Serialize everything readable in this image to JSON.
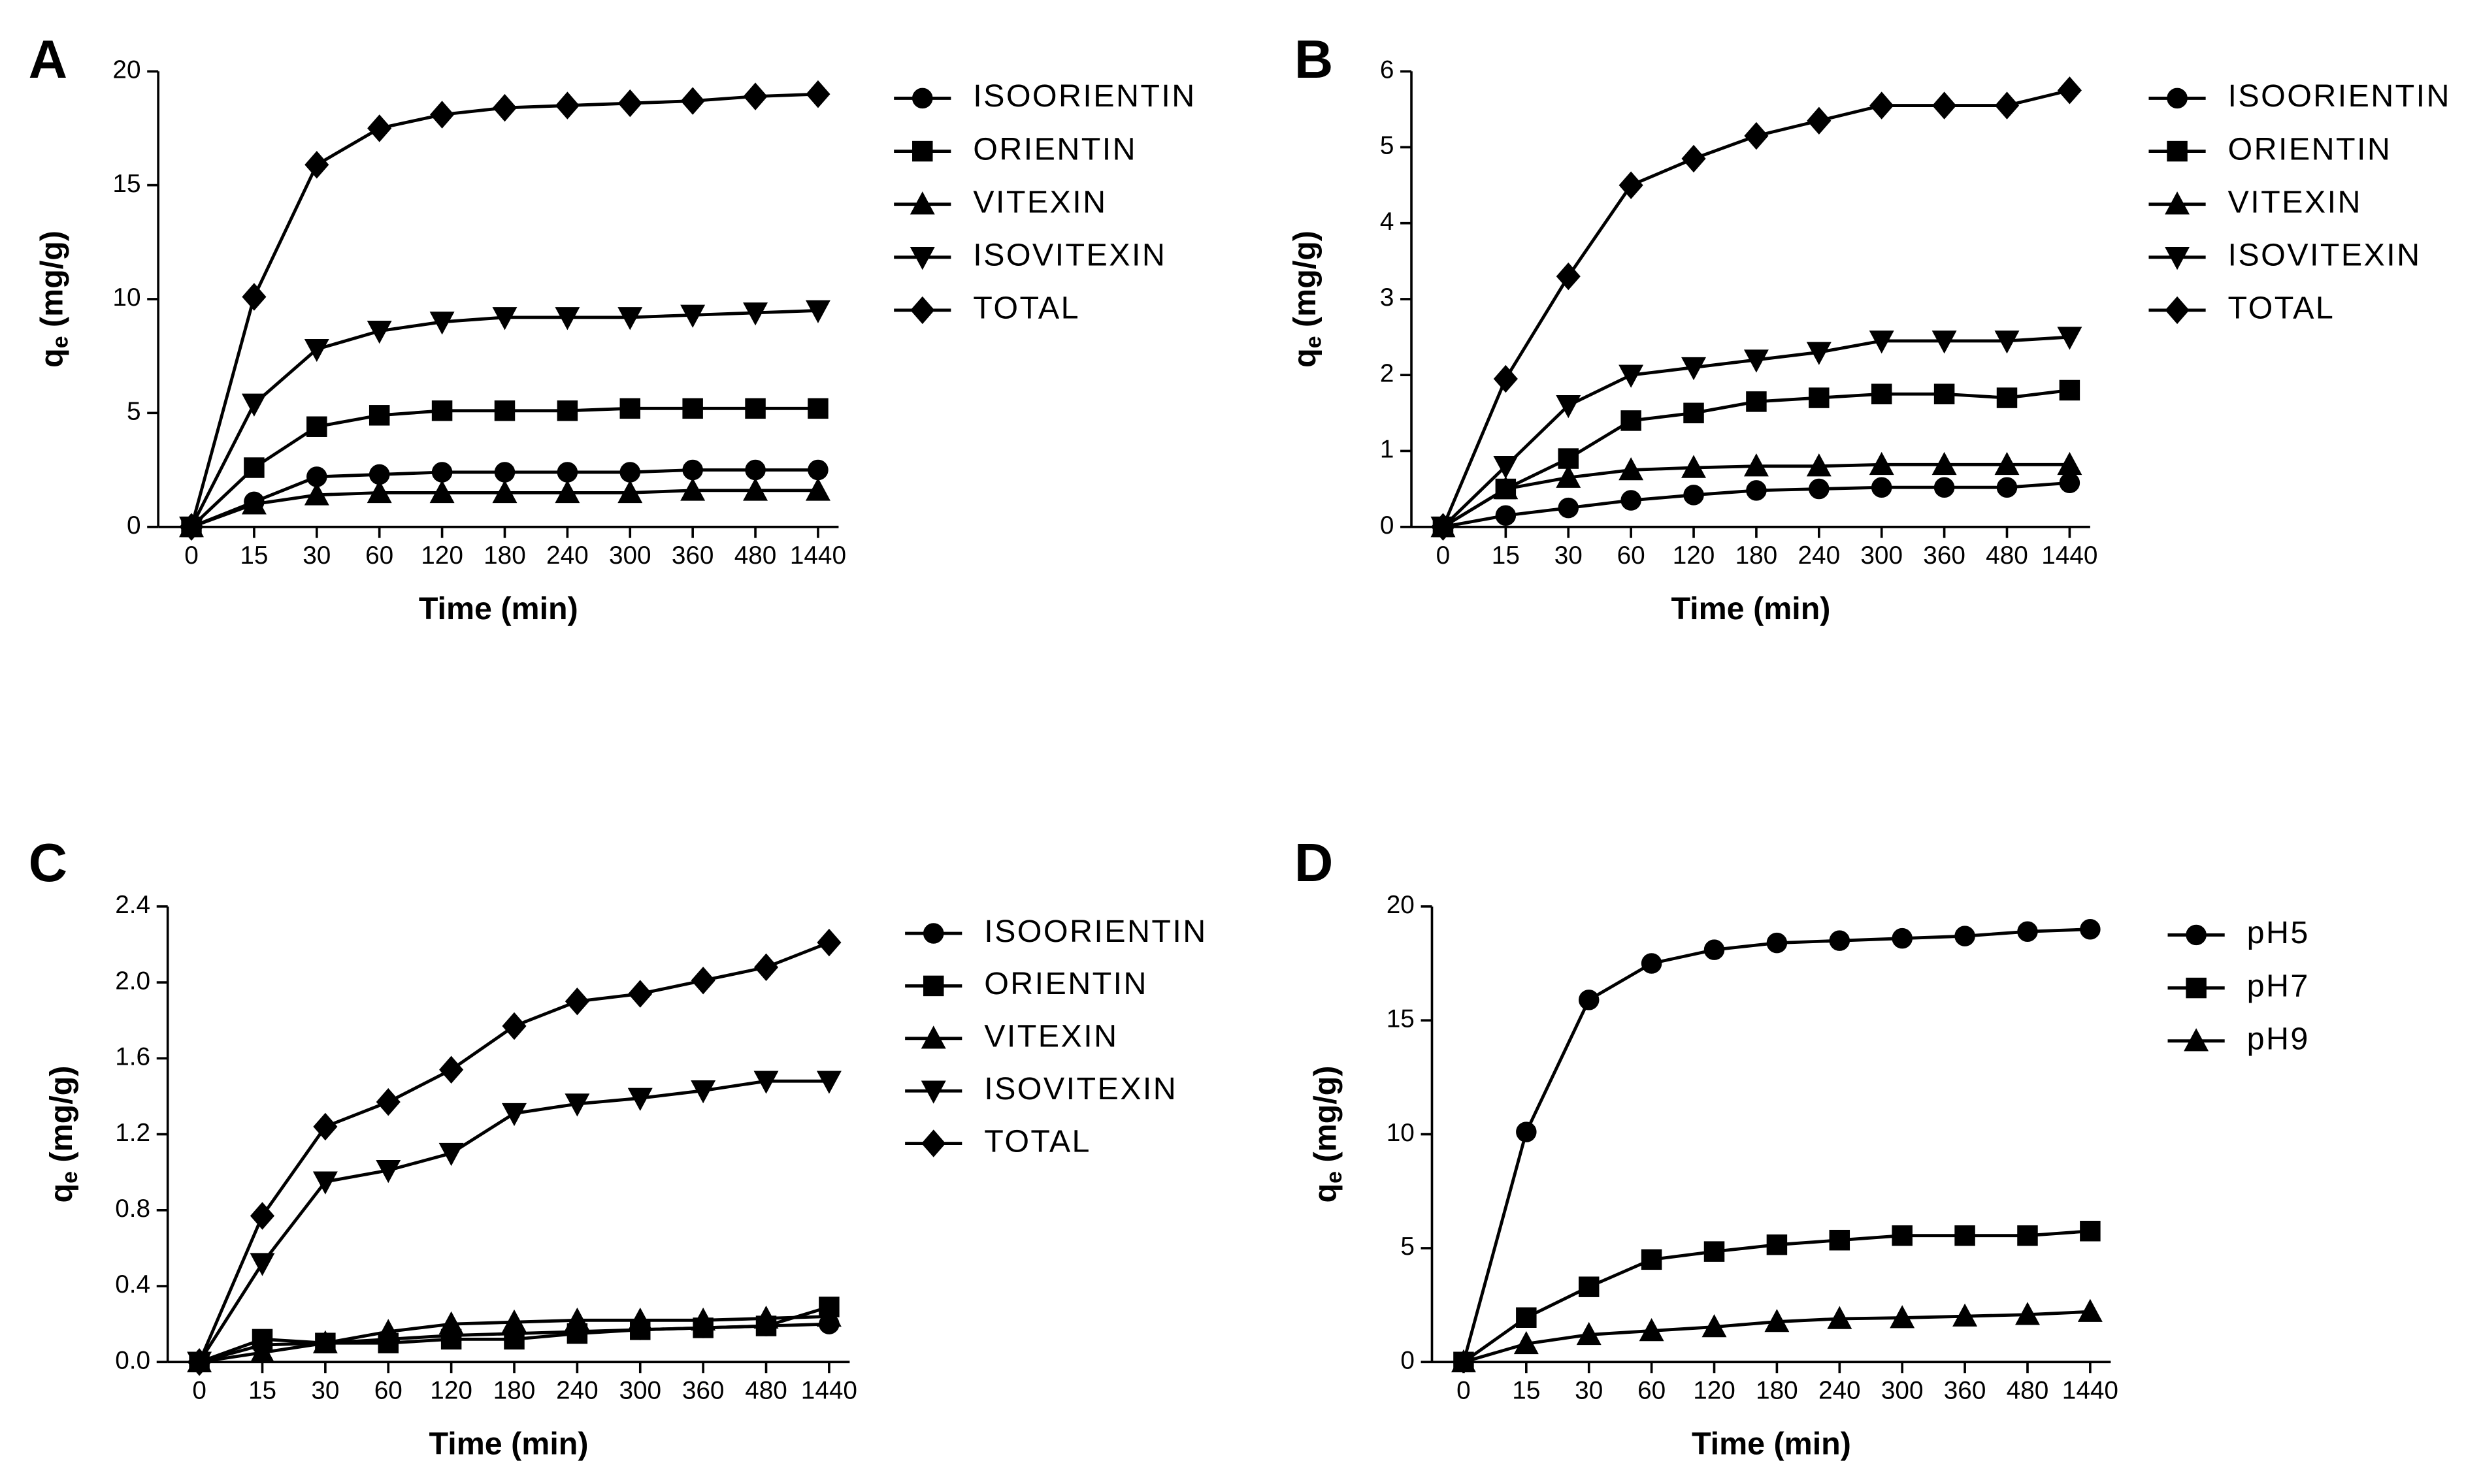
{
  "chart_data": [
    {
      "type": "line",
      "panel_label": "A",
      "x_label": "Time (min)",
      "y_label": {
        "main": "q",
        "sub": "e",
        "rest": " (mg/g)"
      },
      "categories": [
        "0",
        "15",
        "30",
        "60",
        "120",
        "180",
        "240",
        "300",
        "360",
        "480",
        "1440"
      ],
      "ylim": [
        0,
        20
      ],
      "yticks": [
        0,
        5,
        10,
        15,
        20
      ],
      "series": [
        {
          "name": "ISOORIENTIN",
          "color": "#000000",
          "marker": "circle",
          "values": [
            0,
            1.1,
            2.2,
            2.3,
            2.4,
            2.4,
            2.4,
            2.4,
            2.5,
            2.5,
            2.5
          ]
        },
        {
          "name": "ORIENTIN",
          "color": "#000000",
          "marker": "square",
          "values": [
            0,
            2.6,
            4.4,
            4.9,
            5.1,
            5.1,
            5.1,
            5.2,
            5.2,
            5.2,
            5.2
          ]
        },
        {
          "name": "VITEXIN",
          "color": "#000000",
          "marker": "triangle",
          "values": [
            0,
            1.0,
            1.4,
            1.5,
            1.5,
            1.5,
            1.5,
            1.5,
            1.6,
            1.6,
            1.6
          ]
        },
        {
          "name": "ISOVITEXIN",
          "color": "#000000",
          "marker": "triangle-down",
          "values": [
            0,
            5.4,
            7.8,
            8.6,
            9.0,
            9.2,
            9.2,
            9.2,
            9.3,
            9.4,
            9.5
          ]
        },
        {
          "name": "TOTAL",
          "color": "#000000",
          "marker": "diamond",
          "values": [
            0,
            10.1,
            15.9,
            17.5,
            18.1,
            18.4,
            18.5,
            18.6,
            18.7,
            18.9,
            19.0
          ]
        }
      ]
    },
    {
      "type": "line",
      "panel_label": "B",
      "x_label": "Time (min)",
      "y_label": {
        "main": "q",
        "sub": "e",
        "rest": " (mg/g)"
      },
      "categories": [
        "0",
        "15",
        "30",
        "60",
        "120",
        "180",
        "240",
        "300",
        "360",
        "480",
        "1440"
      ],
      "ylim": [
        0,
        6
      ],
      "yticks": [
        0,
        1,
        2,
        3,
        4,
        5,
        6
      ],
      "series": [
        {
          "name": "ISOORIENTIN",
          "color": "#000000",
          "marker": "circle",
          "values": [
            0,
            0.15,
            0.25,
            0.35,
            0.42,
            0.48,
            0.5,
            0.52,
            0.52,
            0.52,
            0.58
          ]
        },
        {
          "name": "ORIENTIN",
          "color": "#000000",
          "marker": "square",
          "values": [
            0,
            0.5,
            0.9,
            1.4,
            1.5,
            1.65,
            1.7,
            1.75,
            1.75,
            1.7,
            1.8
          ]
        },
        {
          "name": "VITEXIN",
          "color": "#000000",
          "marker": "triangle",
          "values": [
            0,
            0.5,
            0.65,
            0.75,
            0.78,
            0.8,
            0.8,
            0.82,
            0.82,
            0.82,
            0.82
          ]
        },
        {
          "name": "ISOVITEXIN",
          "color": "#000000",
          "marker": "triangle-down",
          "values": [
            0,
            0.8,
            1.6,
            2.0,
            2.1,
            2.2,
            2.3,
            2.45,
            2.45,
            2.45,
            2.5
          ]
        },
        {
          "name": "TOTAL",
          "color": "#000000",
          "marker": "diamond",
          "values": [
            0,
            1.95,
            3.3,
            4.5,
            4.85,
            5.15,
            5.35,
            5.55,
            5.55,
            5.55,
            5.75
          ]
        }
      ]
    },
    {
      "type": "line",
      "panel_label": "C",
      "x_label": "Time (min)",
      "y_label": {
        "main": "q",
        "sub": "e",
        "rest": " (mg/g)"
      },
      "categories": [
        "0",
        "15",
        "30",
        "60",
        "120",
        "180",
        "240",
        "300",
        "360",
        "480",
        "1440"
      ],
      "ylim": [
        0,
        2.4
      ],
      "yticks": [
        {
          "value": 0,
          "label": "0.0"
        },
        0.4,
        0.8,
        1.2,
        1.6,
        {
          "value": 2,
          "label": "2.0"
        },
        2.4
      ],
      "series": [
        {
          "name": "ISOORIENTIN",
          "color": "#000000",
          "marker": "circle",
          "values": [
            0,
            0.09,
            0.1,
            0.12,
            0.14,
            0.15,
            0.16,
            0.17,
            0.18,
            0.19,
            0.2
          ]
        },
        {
          "name": "ORIENTIN",
          "color": "#000000",
          "marker": "square",
          "values": [
            0,
            0.12,
            0.1,
            0.1,
            0.12,
            0.12,
            0.15,
            0.17,
            0.18,
            0.19,
            0.29
          ]
        },
        {
          "name": "VITEXIN",
          "color": "#000000",
          "marker": "triangle",
          "values": [
            0,
            0.05,
            0.1,
            0.16,
            0.2,
            0.21,
            0.22,
            0.22,
            0.22,
            0.23,
            0.24
          ]
        },
        {
          "name": "ISOVITEXIN",
          "color": "#000000",
          "marker": "triangle-down",
          "values": [
            0,
            0.52,
            0.95,
            1.01,
            1.1,
            1.31,
            1.36,
            1.39,
            1.43,
            1.48,
            1.48
          ]
        },
        {
          "name": "TOTAL",
          "color": "#000000",
          "marker": "diamond",
          "values": [
            0,
            0.77,
            1.24,
            1.37,
            1.54,
            1.77,
            1.9,
            1.94,
            2.01,
            2.08,
            2.21
          ]
        }
      ]
    },
    {
      "type": "line",
      "panel_label": "D",
      "x_label": "Time (min)",
      "y_label": {
        "main": "q",
        "sub": "e",
        "rest": " (mg/g)"
      },
      "categories": [
        "0",
        "15",
        "30",
        "60",
        "120",
        "180",
        "240",
        "300",
        "360",
        "480",
        "1440"
      ],
      "ylim": [
        0,
        20
      ],
      "yticks": [
        0,
        5,
        10,
        15,
        20
      ],
      "series": [
        {
          "name": "pH5",
          "color": "#000000",
          "marker": "circle",
          "values": [
            0,
            10.1,
            15.9,
            17.5,
            18.1,
            18.4,
            18.5,
            18.6,
            18.7,
            18.9,
            19.0
          ]
        },
        {
          "name": "pH7",
          "color": "#000000",
          "marker": "square",
          "values": [
            0,
            1.95,
            3.3,
            4.5,
            4.85,
            5.15,
            5.35,
            5.55,
            5.55,
            5.55,
            5.75
          ]
        },
        {
          "name": "pH9",
          "color": "#000000",
          "marker": "triangle",
          "values": [
            0,
            0.8,
            1.2,
            1.37,
            1.54,
            1.77,
            1.9,
            1.94,
            2.01,
            2.08,
            2.21
          ]
        }
      ]
    }
  ]
}
